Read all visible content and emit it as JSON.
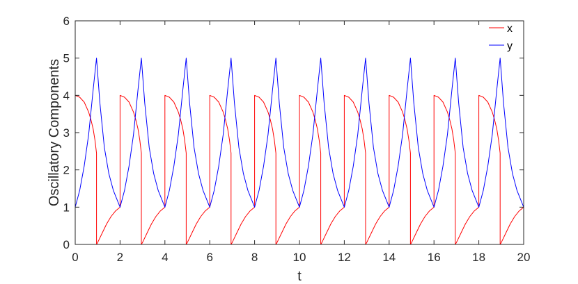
{
  "chart_data": {
    "type": "line",
    "title": "",
    "xlabel": "t",
    "ylabel": "Oscillatory Components",
    "xlim": [
      0,
      20
    ],
    "ylim": [
      0,
      6
    ],
    "xticks": [
      0,
      2,
      4,
      6,
      8,
      10,
      12,
      14,
      16,
      18,
      20
    ],
    "yticks": [
      0,
      1,
      2,
      3,
      4,
      5,
      6
    ],
    "grid": false,
    "legend_position": "top-right",
    "series": [
      {
        "name": "x",
        "color": "#ff0000",
        "x": [
          0,
          0.2,
          0.4,
          0.6,
          0.7,
          0.8,
          0.88,
          0.95,
          0.95,
          1.0,
          1.2,
          1.4,
          1.6,
          1.8,
          2.0,
          2.0,
          2.2,
          2.4,
          2.6,
          2.7,
          2.8,
          2.88,
          2.95,
          2.95,
          3.0,
          3.2,
          3.4,
          3.6,
          3.8,
          4.0,
          4.0,
          4.2,
          4.4,
          4.6,
          4.7,
          4.8,
          4.88,
          4.95,
          4.95,
          5.0,
          5.2,
          5.4,
          5.6,
          5.8,
          6.0,
          6.0,
          6.2,
          6.4,
          6.6,
          6.7,
          6.8,
          6.88,
          6.95,
          6.95,
          7.0,
          7.2,
          7.4,
          7.6,
          7.8,
          8.0,
          8.0,
          8.2,
          8.4,
          8.6,
          8.7,
          8.8,
          8.88,
          8.95,
          8.95,
          9.0,
          9.2,
          9.4,
          9.6,
          9.8,
          10.0,
          10.0,
          10.2,
          10.4,
          10.6,
          10.7,
          10.8,
          10.88,
          10.95,
          10.95,
          11.0,
          11.2,
          11.4,
          11.6,
          11.8,
          12.0,
          12.0,
          12.2,
          12.4,
          12.6,
          12.7,
          12.8,
          12.88,
          12.95,
          12.95,
          13.0,
          13.2,
          13.4,
          13.6,
          13.8,
          14.0,
          14.0,
          14.2,
          14.4,
          14.6,
          14.7,
          14.8,
          14.88,
          14.95,
          14.95,
          15.0,
          15.2,
          15.4,
          15.6,
          15.8,
          16.0,
          16.0,
          16.2,
          16.4,
          16.6,
          16.7,
          16.8,
          16.88,
          16.95,
          16.95,
          17.0,
          17.2,
          17.4,
          17.6,
          17.8,
          18.0,
          18.0,
          18.2,
          18.4,
          18.6,
          18.7,
          18.8,
          18.88,
          18.95,
          18.95,
          19.0,
          19.2,
          19.4,
          19.6,
          19.8,
          20.0,
          20.0
        ],
        "y": [
          4.0,
          3.95,
          3.82,
          3.55,
          3.35,
          3.1,
          2.8,
          2.45,
          0.0,
          0.05,
          0.3,
          0.55,
          0.75,
          0.9,
          1.0,
          4.0,
          3.95,
          3.82,
          3.55,
          3.35,
          3.1,
          2.8,
          2.45,
          0.0,
          0.05,
          0.3,
          0.55,
          0.75,
          0.9,
          1.0,
          4.0,
          3.95,
          3.82,
          3.55,
          3.35,
          3.1,
          2.8,
          2.45,
          0.0,
          0.05,
          0.3,
          0.55,
          0.75,
          0.9,
          1.0,
          4.0,
          3.95,
          3.82,
          3.55,
          3.35,
          3.1,
          2.8,
          2.45,
          0.0,
          0.05,
          0.3,
          0.55,
          0.75,
          0.9,
          1.0,
          4.0,
          3.95,
          3.82,
          3.55,
          3.35,
          3.1,
          2.8,
          2.45,
          0.0,
          0.05,
          0.3,
          0.55,
          0.75,
          0.9,
          1.0,
          4.0,
          3.95,
          3.82,
          3.55,
          3.35,
          3.1,
          2.8,
          2.45,
          0.0,
          0.05,
          0.3,
          0.55,
          0.75,
          0.9,
          1.0,
          4.0,
          3.95,
          3.82,
          3.55,
          3.35,
          3.1,
          2.8,
          2.45,
          0.0,
          0.05,
          0.3,
          0.55,
          0.75,
          0.9,
          1.0,
          4.0,
          3.95,
          3.82,
          3.55,
          3.35,
          3.1,
          2.8,
          2.45,
          0.0,
          0.05,
          0.3,
          0.55,
          0.75,
          0.9,
          1.0,
          4.0,
          3.95,
          3.82,
          3.55,
          3.35,
          3.1,
          2.8,
          2.45,
          0.0,
          0.05,
          0.3,
          0.55,
          0.75,
          0.9,
          1.0,
          4.0,
          3.95,
          3.82,
          3.55,
          3.35,
          3.1,
          2.8,
          2.45,
          0.0,
          0.05,
          0.3,
          0.55,
          0.75,
          0.9,
          1.0,
          4.0
        ]
      },
      {
        "name": "y",
        "color": "#0000ff",
        "x": [
          0,
          0.2,
          0.4,
          0.6,
          0.8,
          0.95,
          1.1,
          1.3,
          1.5,
          1.7,
          2.0,
          2.2,
          2.4,
          2.6,
          2.8,
          2.95,
          3.1,
          3.3,
          3.5,
          3.7,
          4.0,
          4.2,
          4.4,
          4.6,
          4.8,
          4.95,
          5.1,
          5.3,
          5.5,
          5.7,
          6.0,
          6.2,
          6.4,
          6.6,
          6.8,
          6.95,
          7.1,
          7.3,
          7.5,
          7.7,
          8.0,
          8.2,
          8.4,
          8.6,
          8.8,
          8.95,
          9.1,
          9.3,
          9.5,
          9.7,
          10.0,
          10.2,
          10.4,
          10.6,
          10.8,
          10.95,
          11.1,
          11.3,
          11.5,
          11.7,
          12.0,
          12.2,
          12.4,
          12.6,
          12.8,
          12.95,
          13.1,
          13.3,
          13.5,
          13.7,
          14.0,
          14.2,
          14.4,
          14.6,
          14.8,
          14.95,
          15.1,
          15.3,
          15.5,
          15.7,
          16.0,
          16.2,
          16.4,
          16.6,
          16.8,
          16.95,
          17.1,
          17.3,
          17.5,
          17.7,
          18.0,
          18.2,
          18.4,
          18.6,
          18.8,
          18.95,
          19.1,
          19.3,
          19.5,
          19.7,
          20.0
        ],
        "y": [
          1.0,
          1.45,
          2.1,
          2.95,
          4.15,
          5.0,
          3.8,
          2.6,
          1.9,
          1.45,
          1.0,
          1.45,
          2.1,
          2.95,
          4.15,
          5.0,
          3.8,
          2.6,
          1.9,
          1.45,
          1.0,
          1.45,
          2.1,
          2.95,
          4.15,
          5.0,
          3.8,
          2.6,
          1.9,
          1.45,
          1.0,
          1.45,
          2.1,
          2.95,
          4.15,
          5.0,
          3.8,
          2.6,
          1.9,
          1.45,
          1.0,
          1.45,
          2.1,
          2.95,
          4.15,
          5.0,
          3.8,
          2.6,
          1.9,
          1.45,
          1.0,
          1.45,
          2.1,
          2.95,
          4.15,
          5.0,
          3.8,
          2.6,
          1.9,
          1.45,
          1.0,
          1.45,
          2.1,
          2.95,
          4.15,
          5.0,
          3.8,
          2.6,
          1.9,
          1.45,
          1.0,
          1.45,
          2.1,
          2.95,
          4.15,
          5.0,
          3.8,
          2.6,
          1.9,
          1.45,
          1.0,
          1.45,
          2.1,
          2.95,
          4.15,
          5.0,
          3.8,
          2.6,
          1.9,
          1.45,
          1.0,
          1.45,
          2.1,
          2.95,
          4.15,
          5.0,
          3.8,
          2.6,
          1.9,
          1.45,
          1.0
        ]
      }
    ]
  }
}
